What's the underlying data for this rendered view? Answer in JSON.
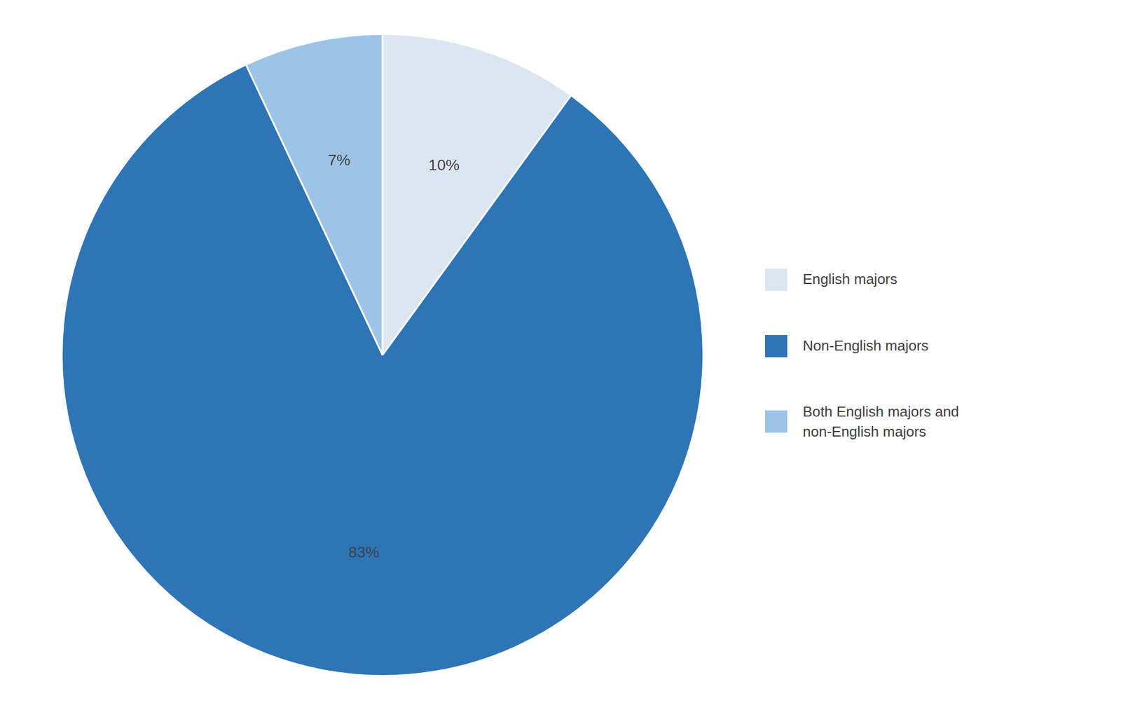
{
  "chart_data": {
    "type": "pie",
    "categories": [
      "English majors",
      "Non-English majors",
      "Both English majors and\nnon-English majors"
    ],
    "values": [
      10,
      83,
      7
    ],
    "value_labels": [
      "10%",
      "83%",
      "7%"
    ],
    "colors": [
      "#dce6f1",
      "#2e75b6",
      "#9dc3e6"
    ],
    "data_labels": true,
    "legend": "right"
  }
}
